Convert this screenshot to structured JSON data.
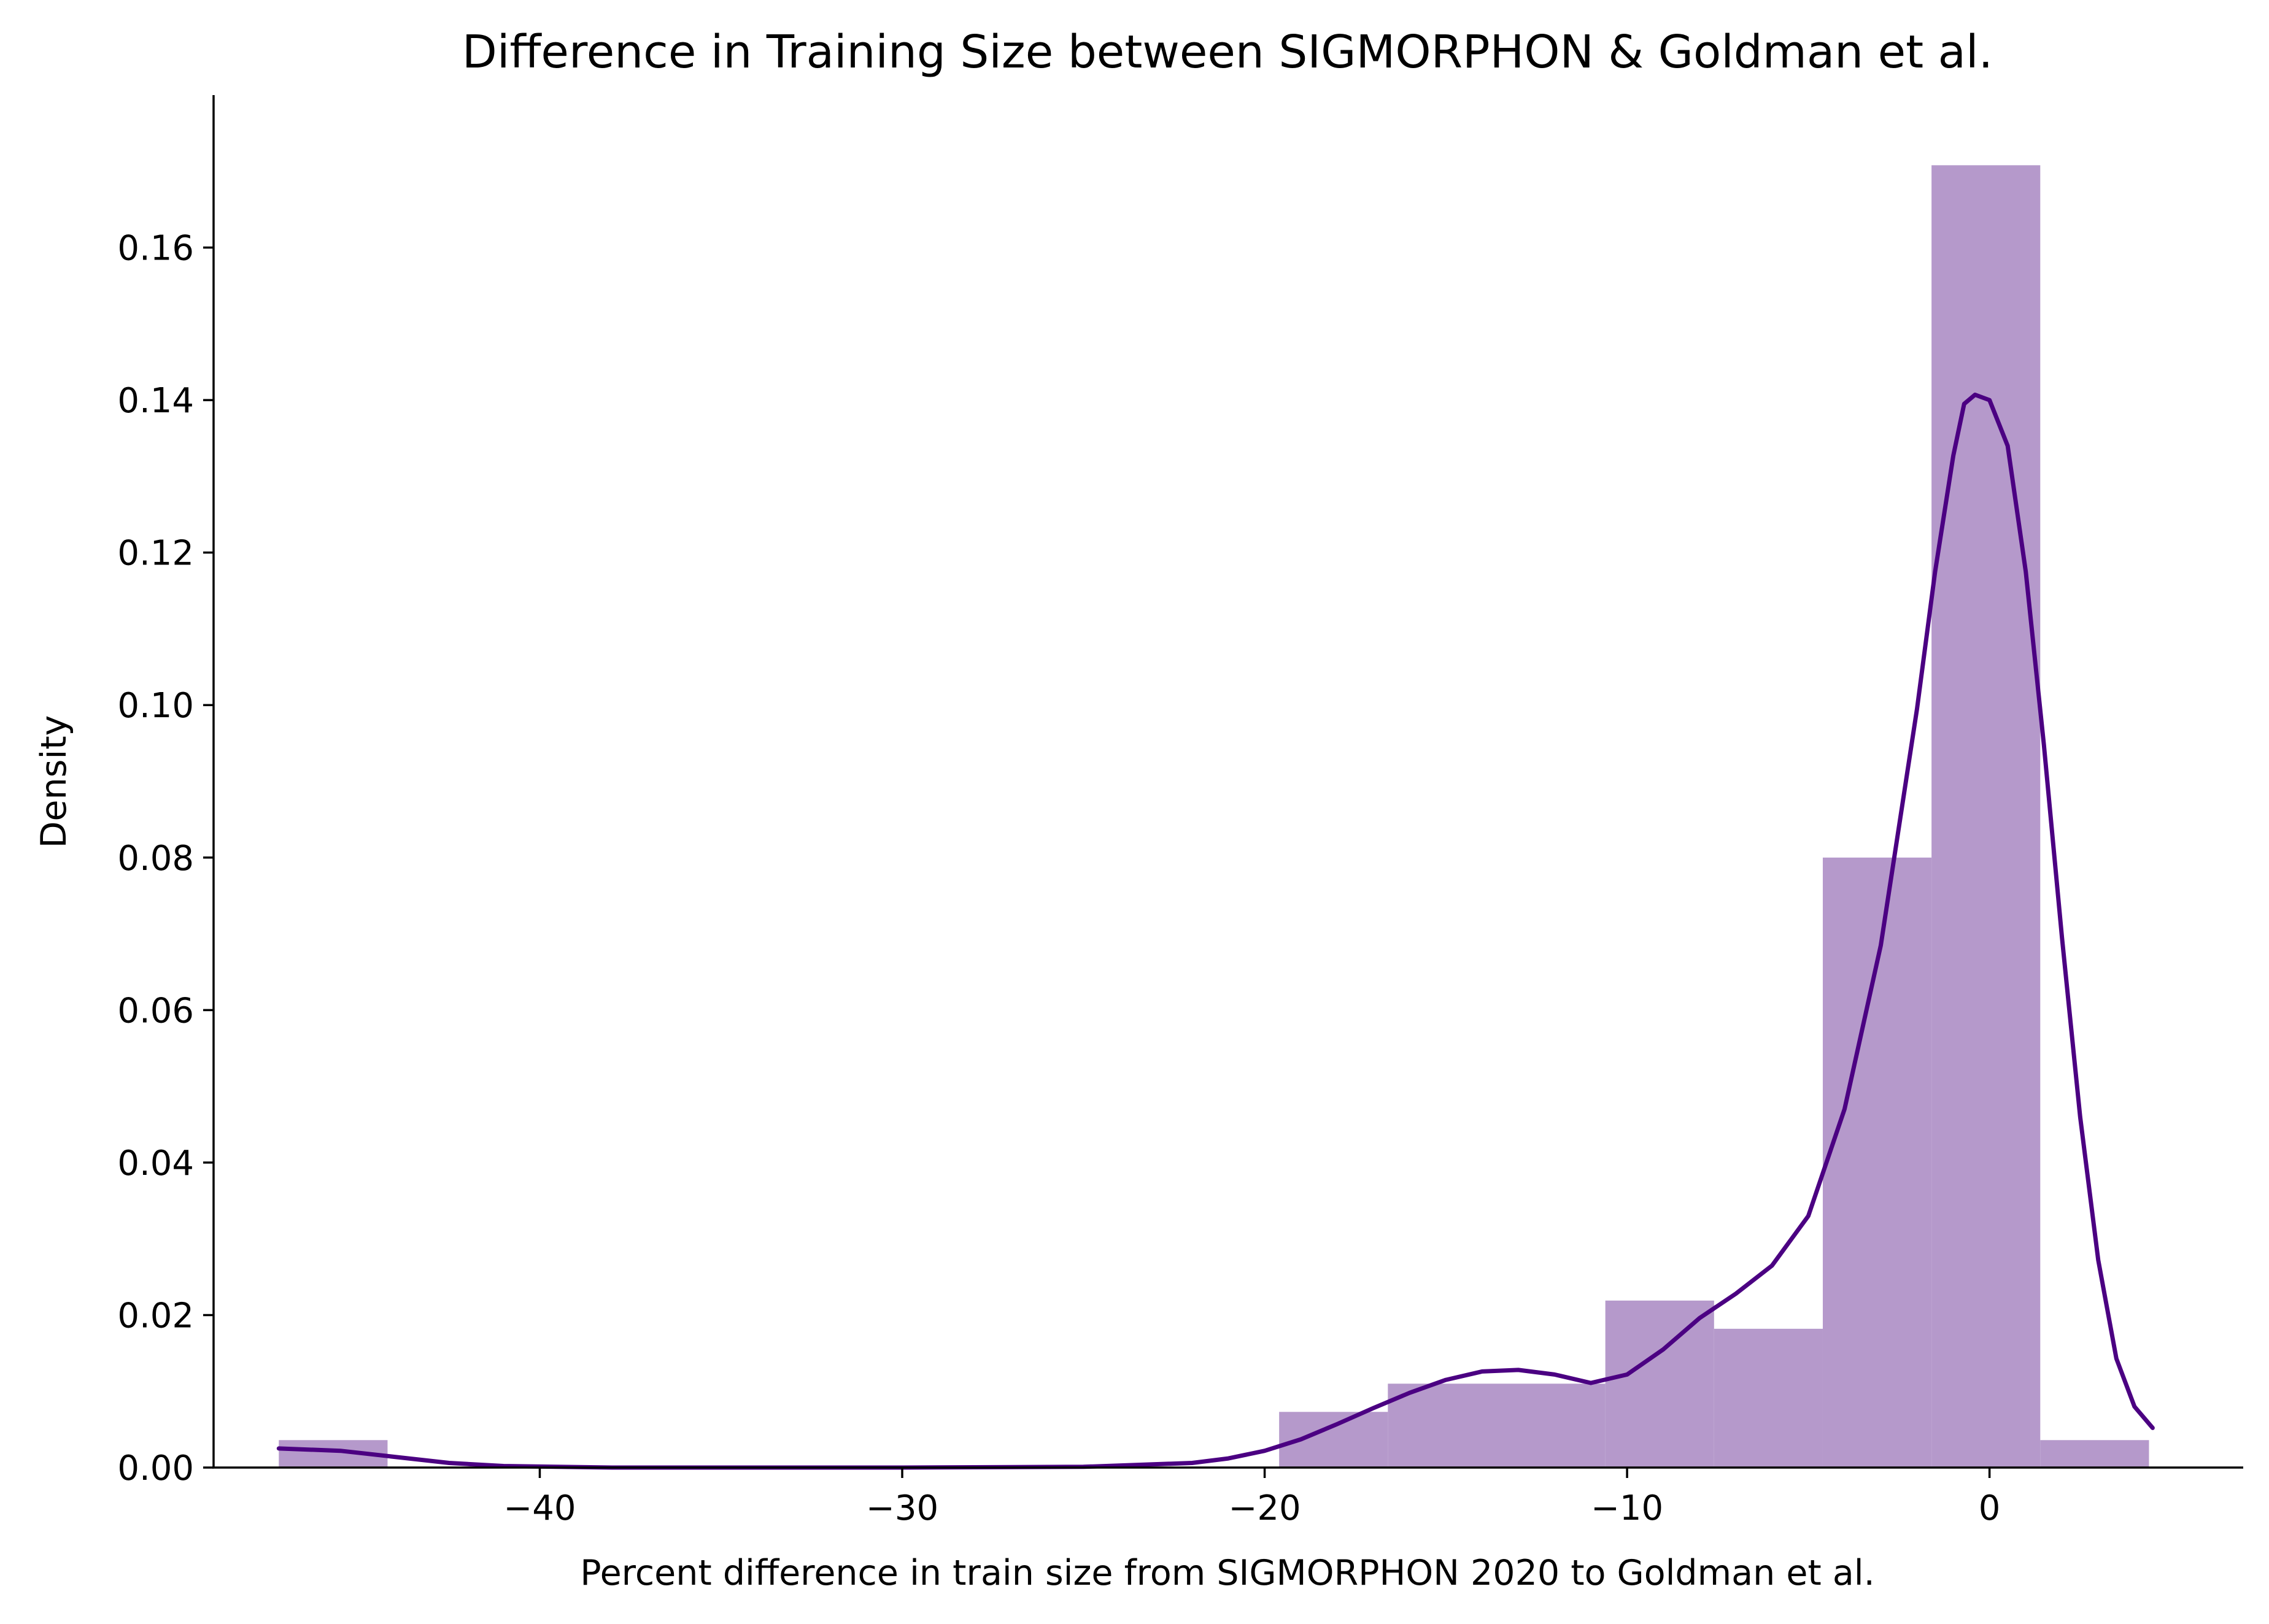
{
  "chart_data": {
    "type": "histogram",
    "title": "Difference in Training Size between SIGMORPHON & Goldman et al.",
    "xlabel": "Percent difference in train size from SIGMORPHON 2020 to Goldman et al.",
    "ylabel": "Density",
    "xlim": [
      -49.0,
      7.0
    ],
    "ylim": [
      0,
      0.18
    ],
    "xticks": [
      -40,
      -30,
      -20,
      -10,
      0
    ],
    "xtick_labels": [
      "−40",
      "−30",
      "−20",
      "−10",
      "0"
    ],
    "yticks": [
      0.0,
      0.02,
      0.04,
      0.06,
      0.08,
      0.1,
      0.12,
      0.14,
      0.16
    ],
    "ytick_labels": [
      "0.00",
      "0.02",
      "0.04",
      "0.06",
      "0.08",
      "0.10",
      "0.12",
      "0.14",
      "0.16"
    ],
    "grid": false,
    "bar_color": "#b599cb",
    "kde_color": "#4b0082",
    "bins": [
      {
        "x0": -47.2,
        "x1": -44.2,
        "density": 0.0036
      },
      {
        "x0": -44.2,
        "x1": -41.2,
        "density": 0.0
      },
      {
        "x0": -41.2,
        "x1": -38.2,
        "density": 0.0
      },
      {
        "x0": -38.2,
        "x1": -35.2,
        "density": 0.0
      },
      {
        "x0": -35.2,
        "x1": -32.2,
        "density": 0.0
      },
      {
        "x0": -32.2,
        "x1": -29.2,
        "density": 0.0
      },
      {
        "x0": -29.2,
        "x1": -26.2,
        "density": 0.0
      },
      {
        "x0": -26.2,
        "x1": -23.2,
        "density": 0.0
      },
      {
        "x0": -23.2,
        "x1": -19.6,
        "density": 0.0
      },
      {
        "x0": -19.6,
        "x1": -16.6,
        "density": 0.0073
      },
      {
        "x0": -16.6,
        "x1": -10.6,
        "density": 0.011
      },
      {
        "x0": -10.6,
        "x1": -7.6,
        "density": 0.0219
      },
      {
        "x0": -7.6,
        "x1": -4.6,
        "density": 0.0182
      },
      {
        "x0": -4.6,
        "x1": -1.6,
        "density": 0.08
      },
      {
        "x0": -1.6,
        "x1": 1.4,
        "density": 0.1708
      },
      {
        "x0": 1.4,
        "x1": 4.4,
        "density": 0.0036
      }
    ],
    "kde": {
      "x": [
        -47.2,
        -45.5,
        -44.0,
        -42.5,
        -41.0,
        -38.0,
        -30.0,
        -25.0,
        -22.0,
        -21.0,
        -20.0,
        -19.0,
        -18.0,
        -17.0,
        -16.0,
        -15.0,
        -14.0,
        -13.0,
        -12.0,
        -11.0,
        -10.0,
        -9.0,
        -8.0,
        -7.0,
        -6.0,
        -5.0,
        -4.0,
        -3.0,
        -2.0,
        -1.5,
        -1.0,
        -0.7,
        -0.4,
        0.0,
        0.5,
        1.0,
        1.5,
        2.0,
        2.5,
        3.0,
        3.5,
        4.0,
        4.5
      ],
      "y": [
        0.0025,
        0.0022,
        0.0014,
        0.0006,
        0.0002,
        0.0,
        0.0,
        0.0001,
        0.0006,
        0.0012,
        0.0022,
        0.0037,
        0.0057,
        0.0078,
        0.0098,
        0.0115,
        0.0126,
        0.0128,
        0.0122,
        0.0111,
        0.0122,
        0.0155,
        0.0196,
        0.0228,
        0.0265,
        0.033,
        0.047,
        0.0685,
        0.0995,
        0.1175,
        0.1327,
        0.1395,
        0.1407,
        0.14,
        0.134,
        0.1175,
        0.0948,
        0.0695,
        0.046,
        0.0272,
        0.0143,
        0.008,
        0.0052
      ]
    }
  }
}
